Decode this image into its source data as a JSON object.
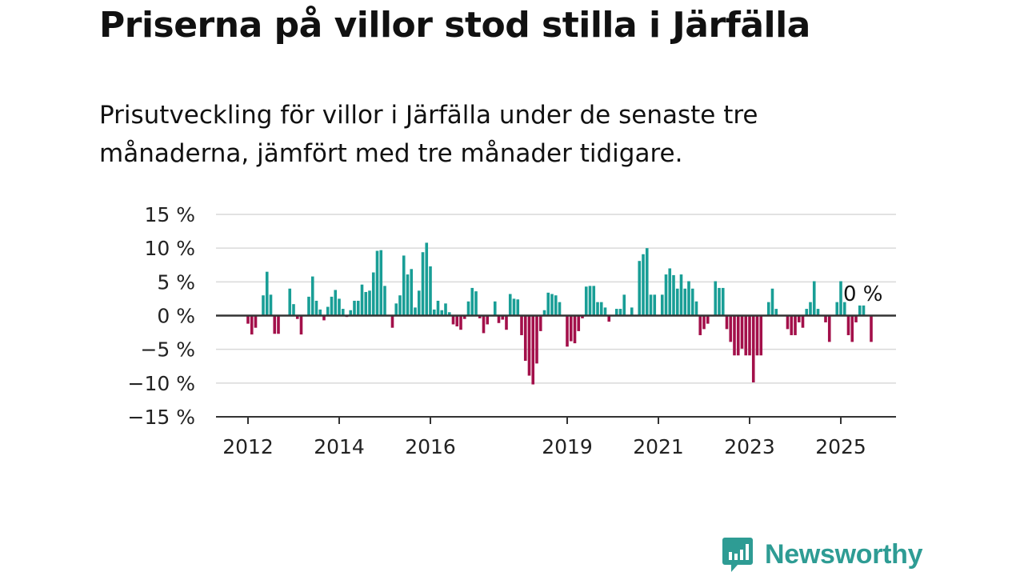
{
  "header": {
    "title": "Priserna på villor stod stilla i Järfälla",
    "subtitle": "Prisutveckling för villor i Järfälla under de senaste tre månaderna, jämfört med tre månader tidigare."
  },
  "chart_data": {
    "type": "bar",
    "title": "Priserna på villor stod stilla i Järfälla",
    "subtitle": "Prisutveckling för villor i Järfälla under de senaste tre månaderna, jämfört med tre månader tidigare.",
    "x_start": "2012-01",
    "x_end": "2025-06",
    "ylim": [
      -15,
      15
    ],
    "y_ticks": [
      15,
      10,
      5,
      0,
      -5,
      -10,
      -15
    ],
    "y_tick_labels": [
      "15 %",
      "10 %",
      "5 %",
      "0 %",
      "−5 %",
      "−10 %",
      "−15 %"
    ],
    "x_ticks": [
      "2012-01",
      "2014-01",
      "2016-01",
      "2019-01",
      "2021-01",
      "2023-01",
      "2025-01"
    ],
    "x_tick_labels": [
      "2012",
      "2014",
      "2016",
      "2019",
      "2021",
      "2023",
      "2025"
    ],
    "positive_color": "#199e96",
    "negative_color": "#a3104a",
    "grid": true,
    "end_label": "0 %",
    "series": [
      {
        "start": "2012-01",
        "values": [
          -1.2,
          -2.8,
          -1.8,
          0,
          3.0,
          6.5,
          3.1,
          -2.7,
          -2.7,
          0,
          0,
          4.0,
          1.7,
          -0.5,
          -2.8,
          0,
          2.8,
          5.8,
          2.2,
          0.9,
          -0.7,
          1.3,
          2.8,
          3.8,
          2.5,
          1.0,
          -0.2,
          0.8,
          2.2,
          2.2,
          4.6,
          3.5,
          3.7,
          6.4,
          9.6,
          9.7,
          4.4,
          0,
          -1.8,
          1.8,
          3.0,
          8.9,
          6.1,
          6.9,
          1.2,
          3.7,
          9.4,
          10.8,
          7.3,
          0.9,
          2.2,
          0.8,
          1.8,
          0.5,
          -1.3,
          -1.6,
          -2.1,
          -0.5,
          2.1,
          4.1,
          3.6,
          -0.4,
          -2.6,
          -1.3,
          0,
          2.1,
          -1.1,
          -0.6,
          -2.1,
          3.2,
          2.5,
          2.4,
          -2.9,
          -6.7,
          -8.9,
          -10.2,
          -7.1,
          -2.3,
          0.8,
          3.4,
          3.2,
          3.0,
          2.0,
          -0.1,
          -4.6,
          -3.8,
          -4.1,
          -2.3,
          -0.4,
          4.3,
          4.4,
          4.4,
          2.0,
          2.0,
          1.2,
          -0.9,
          0,
          1.0,
          1.0,
          3.1,
          0,
          1.2,
          0,
          8.1,
          9.1,
          10.0,
          3.1,
          3.1,
          0,
          3.1,
          6.1,
          7.0,
          6.0,
          4.0,
          6.1,
          4.0,
          5.1,
          4.0,
          2.1,
          -2.9,
          -2.0,
          -1.2,
          0,
          5.1,
          4.1,
          4.1,
          -2.0,
          -3.9,
          -5.9,
          -5.9,
          -4.9,
          -5.9,
          -5.9,
          -9.9,
          -5.9,
          -5.9,
          0,
          2.0,
          4.0,
          1.0,
          0,
          0,
          -2.0,
          -2.9,
          -2.9,
          -1.0,
          -1.8,
          1.0,
          2.0,
          5.1,
          1.0,
          0,
          -1.0,
          -3.9,
          0,
          2.0,
          5.1,
          2.0,
          -2.9,
          -3.9,
          -1.0,
          1.5,
          1.5,
          0,
          -3.9,
          0
        ]
      }
    ]
  },
  "logo": {
    "text": "Newsworthy",
    "icon": "newsworthy-logo-icon",
    "color": "#2e9c94"
  }
}
